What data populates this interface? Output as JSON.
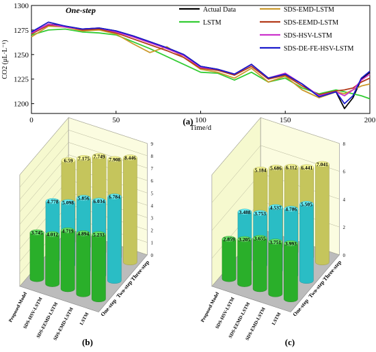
{
  "chart_data": [
    {
      "panel": "(a)",
      "type": "line",
      "title": "One-step",
      "xlabel": "Time/d",
      "ylabel": "CO2 (μL·L⁻¹)",
      "xlim": [
        0,
        200
      ],
      "ylim": [
        1190,
        1300
      ],
      "xticks": [
        0,
        50,
        100,
        150,
        200
      ],
      "yticks": [
        1200,
        1225,
        1250,
        1275,
        1300
      ],
      "legend_position": "top-right",
      "x": [
        0,
        10,
        20,
        30,
        40,
        50,
        60,
        70,
        80,
        90,
        100,
        110,
        120,
        130,
        140,
        150,
        160,
        170,
        180,
        185,
        190,
        195,
        200
      ],
      "series": [
        {
          "name": "Actual Data",
          "color": "#000000",
          "values": [
            1272,
            1281,
            1279,
            1276,
            1277,
            1274,
            1269,
            1263,
            1257,
            1250,
            1238,
            1235,
            1230,
            1240,
            1226,
            1230,
            1220,
            1207,
            1212,
            1195,
            1206,
            1225,
            1232
          ]
        },
        {
          "name": "LSTM",
          "color": "#33cc33",
          "values": [
            1270,
            1275,
            1276,
            1273,
            1272,
            1270,
            1263,
            1256,
            1248,
            1240,
            1232,
            1231,
            1224,
            1232,
            1222,
            1226,
            1216,
            1210,
            1214,
            1212,
            1210,
            1208,
            1205
          ]
        },
        {
          "name": "SDS-EMD-LSTM",
          "color": "#cc9a2c",
          "values": [
            1268,
            1279,
            1278,
            1274,
            1275,
            1271,
            1261,
            1252,
            1258,
            1247,
            1235,
            1232,
            1226,
            1236,
            1222,
            1228,
            1214,
            1206,
            1212,
            1210,
            1214,
            1218,
            1220
          ]
        },
        {
          "name": "SDS-EEMD-LSTM",
          "color": "#b33a1a",
          "values": [
            1271,
            1280,
            1279,
            1275,
            1276,
            1272,
            1266,
            1260,
            1254,
            1247,
            1236,
            1234,
            1229,
            1238,
            1225,
            1229,
            1218,
            1209,
            1213,
            1214,
            1216,
            1222,
            1226
          ]
        },
        {
          "name": "SDS-HSV-LSTM",
          "color": "#cc33cc",
          "values": [
            1272,
            1281,
            1278,
            1276,
            1277,
            1273,
            1268,
            1262,
            1256,
            1249,
            1237,
            1235,
            1230,
            1240,
            1226,
            1231,
            1220,
            1208,
            1212,
            1208,
            1214,
            1224,
            1230
          ]
        },
        {
          "name": "SDS-DE-FE-HSV-LSTM",
          "color": "#1a1acc",
          "values": [
            1273,
            1283,
            1279,
            1276,
            1277,
            1274,
            1269,
            1263,
            1257,
            1250,
            1238,
            1235,
            1230,
            1240,
            1226,
            1230,
            1220,
            1207,
            1212,
            1200,
            1208,
            1226,
            1233
          ]
        }
      ]
    },
    {
      "panel": "(b)",
      "type": "bar",
      "categories": [
        "Proposed Model",
        "SDS-HSV-LSTM",
        "SDS-EEMD-LSTM",
        "SDS-EMD-LSTM",
        "LSTM"
      ],
      "zlim": [
        0,
        9
      ],
      "zticks": [
        0,
        1,
        2,
        3,
        4,
        5,
        6,
        7,
        8,
        9
      ],
      "series": [
        {
          "name": "One-step",
          "color": "#33d633",
          "values": [
            3.745,
            4.012,
            4.719,
            4.894,
            5.233
          ]
        },
        {
          "name": "Two-step",
          "color": "#33e6f0",
          "values": [
            4.778,
            5.098,
            5.856,
            6.034,
            6.784
          ]
        },
        {
          "name": "Three-step",
          "color": "#f0f070",
          "values": [
            6.59,
            7.175,
            7.749,
            7.908,
            8.446
          ]
        }
      ]
    },
    {
      "panel": "(c)",
      "type": "bar",
      "categories": [
        "Proposed Model",
        "SDS-HSV-LSTM",
        "SDS-EEMD-LSTM",
        "SDS-EMD-LSTM",
        "LSTM"
      ],
      "zlim": [
        0,
        8
      ],
      "zticks": [
        0,
        2,
        4,
        6,
        8
      ],
      "series": [
        {
          "name": "One-step",
          "color": "#33d633",
          "values": [
            2.859,
            3.205,
            3.655,
            3.751,
            3.993
          ]
        },
        {
          "name": "Two-step",
          "color": "#33e6f0",
          "values": [
            3.488,
            3.753,
            4.537,
            4.786,
            5.505
          ]
        },
        {
          "name": "Three-step",
          "color": "#f0f070",
          "values": [
            5.184,
            5.686,
            6.112,
            6.441,
            7.041
          ]
        }
      ]
    }
  ]
}
